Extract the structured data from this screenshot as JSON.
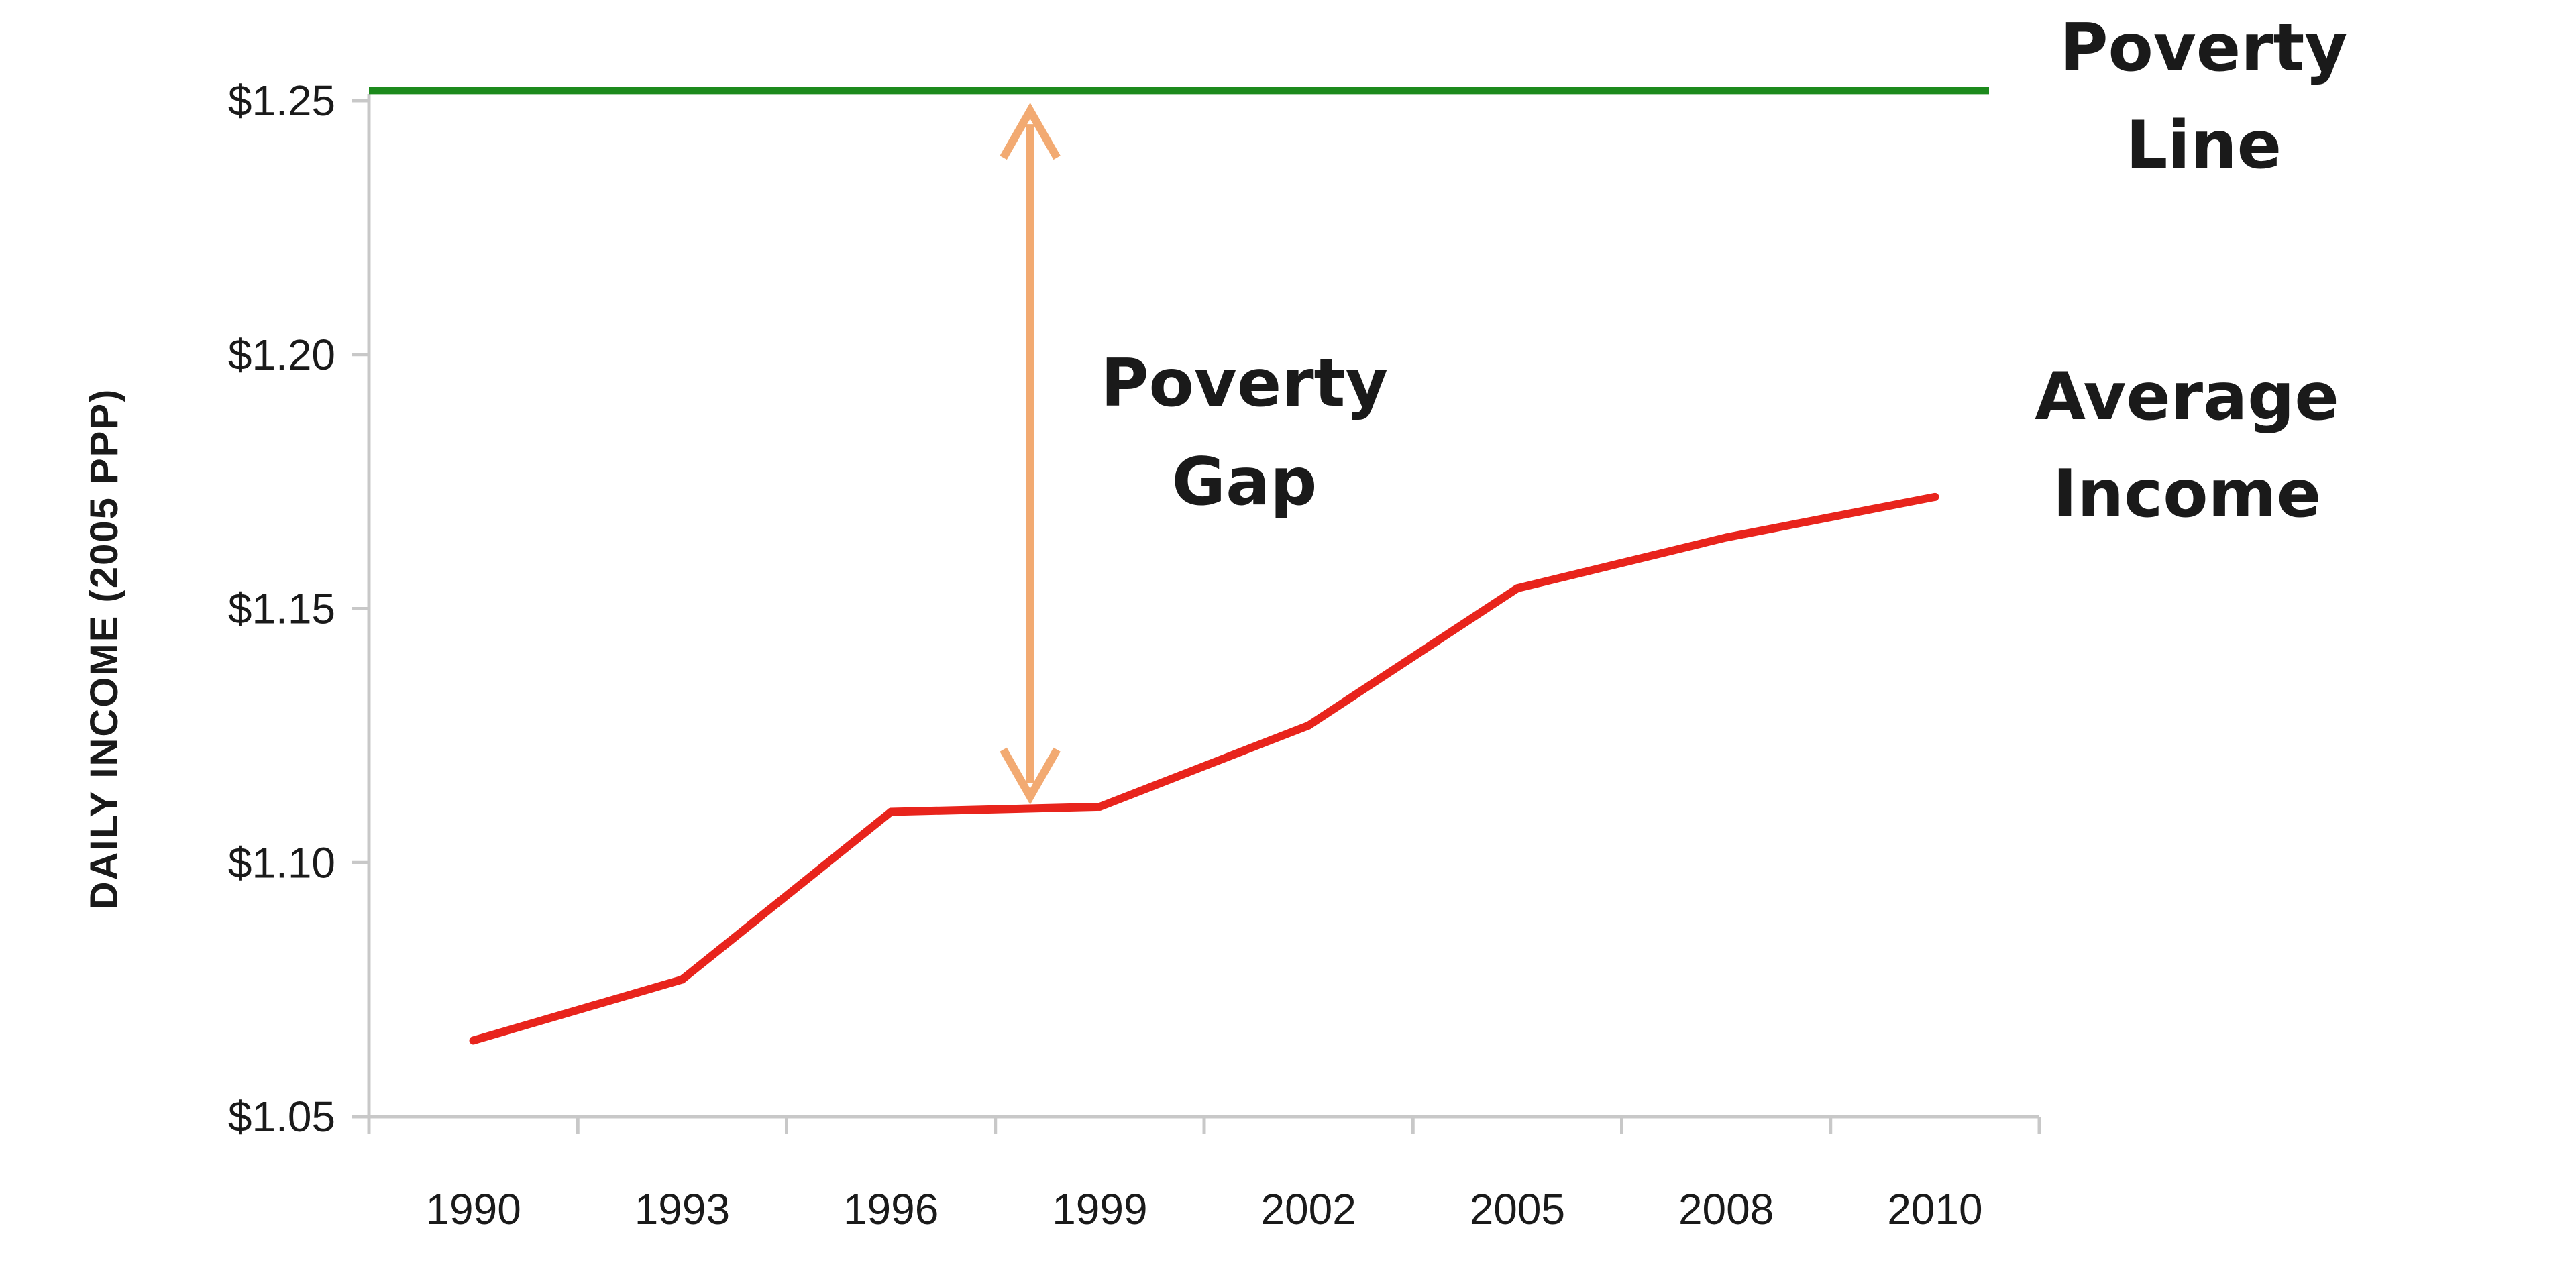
{
  "chart_data": {
    "type": "line",
    "title": "",
    "xlabel": "",
    "ylabel": "DAILY INCOME (2005 PPP)",
    "categories": [
      "1990",
      "1993",
      "1996",
      "1999",
      "2002",
      "2005",
      "2008",
      "2010"
    ],
    "yticks": [
      "$1.05",
      "$1.10",
      "$1.15",
      "$1.20",
      "$1.25"
    ],
    "ylim": [
      1.05,
      1.25
    ],
    "grid": false,
    "series": [
      {
        "label": "Average Income",
        "color": "#e8241c",
        "points": [
          {
            "x": "1990",
            "y": 1.065
          },
          {
            "x": "1993",
            "y": 1.077
          },
          {
            "x": "1996",
            "y": 1.11
          },
          {
            "x": "1999",
            "y": 1.111
          },
          {
            "x": "2002",
            "y": 1.127
          },
          {
            "x": "2005",
            "y": 1.154
          },
          {
            "x": "2008",
            "y": 1.164
          },
          {
            "x": "2010",
            "y": 1.172
          }
        ]
      }
    ],
    "reference_line": {
      "label": "Poverty Line",
      "y": 1.252,
      "color": "#1c8a1c"
    },
    "gap_arrow": {
      "label": "Poverty Gap",
      "x": 1998,
      "y_top": 1.248,
      "y_bottom": 1.113,
      "color": "#f2aa72"
    },
    "annotations": {
      "poverty_line_lines": [
        "Poverty",
        "Line"
      ],
      "average_income_lines": [
        "Average",
        "Income"
      ],
      "poverty_gap_lines": [
        "Poverty",
        "Gap"
      ]
    }
  }
}
